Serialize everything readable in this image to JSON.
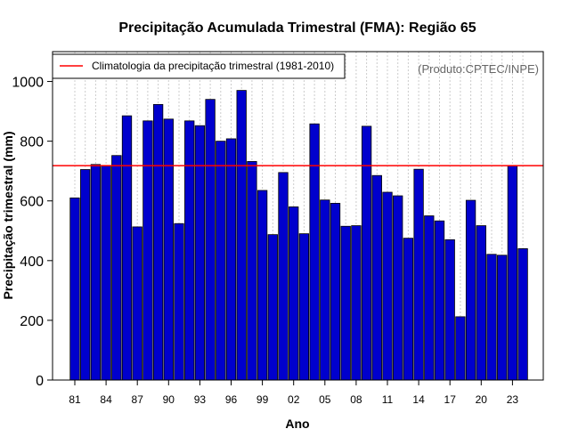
{
  "chart_data": {
    "type": "bar",
    "title": "Precipitação Acumulada Trimestral (FMA): Região 65",
    "xlabel": "Ano",
    "ylabel": "Precipitação trimestral (mm)",
    "ylim": [
      0,
      1100
    ],
    "yticks": [
      0,
      200,
      400,
      600,
      800,
      1000
    ],
    "categories": [
      1981,
      1982,
      1983,
      1984,
      1985,
      1986,
      1987,
      1988,
      1989,
      1990,
      1991,
      1992,
      1993,
      1994,
      1995,
      1996,
      1997,
      1998,
      1999,
      2000,
      2001,
      2002,
      2003,
      2004,
      2005,
      2006,
      2007,
      2008,
      2009,
      2010,
      2011,
      2012,
      2013,
      2014,
      2015,
      2016,
      2017,
      2018,
      2019,
      2020,
      2021,
      2022,
      2023,
      2024
    ],
    "values": [
      610,
      705,
      722,
      717,
      752,
      885,
      513,
      868,
      923,
      874,
      524,
      868,
      852,
      940,
      800,
      808,
      970,
      732,
      635,
      487,
      695,
      580,
      490,
      858,
      603,
      592,
      515,
      517,
      850,
      685,
      629,
      617,
      475,
      706,
      550,
      533,
      470,
      212,
      602,
      517,
      421,
      418,
      717,
      440
    ],
    "xtick_labels": [
      "81",
      "84",
      "87",
      "90",
      "93",
      "96",
      "99",
      "02",
      "05",
      "08",
      "11",
      "14",
      "17",
      "20",
      "23"
    ],
    "xtick_years": [
      1981,
      1984,
      1987,
      1990,
      1993,
      1996,
      1999,
      2002,
      2005,
      2008,
      2011,
      2014,
      2017,
      2020,
      2023
    ],
    "climatology": 718,
    "legend_label": "Climatologia da precipitação trimestral (1981-2010)",
    "credit": "(Produto:CPTEC/INPE)",
    "colors": {
      "bar": "#0000CD",
      "climatology": "#FF0000",
      "grid": "#cccccc"
    }
  }
}
